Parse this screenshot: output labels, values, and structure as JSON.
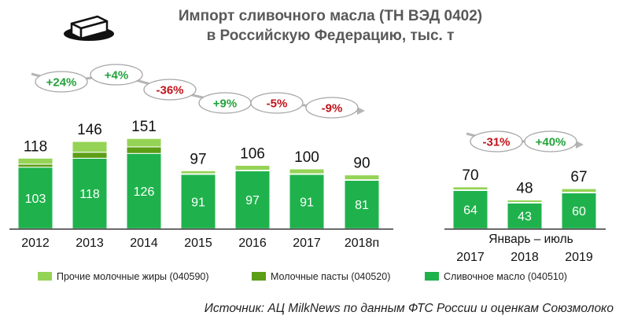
{
  "title": {
    "line1": "Импорт сливочного масла (ТН ВЭД 0402)",
    "line2": "в Российскую Федерацию, тыс. т"
  },
  "legend": {
    "other_fats": "Прочие молочные жиры (040590)",
    "pastes": "Молочные пасты (040520)",
    "butter": "Сливочное масло (040510)"
  },
  "period_label": "Январь – июль",
  "source": "Источник: АЦ MilkNews по данным ФТС России и оценкам Союзмолоко",
  "colors": {
    "butter": "#1fb24c",
    "pastes": "#5c9e16",
    "other_fats": "#95d356",
    "positive": "#22a33a",
    "negative": "#c0141c",
    "axis": "#111111"
  },
  "icon": "butter-dish-icon",
  "chart_data": {
    "type": "bar",
    "stacked": true,
    "ylim": [
      0,
      160
    ],
    "categories": [
      "2012",
      "2013",
      "2014",
      "2015",
      "2016",
      "2017",
      "2018п",
      "2017",
      "2018",
      "2019"
    ],
    "series": [
      {
        "name": "Сливочное масло (040510)",
        "values": [
          103,
          118,
          126,
          91,
          97,
          91,
          81,
          64,
          43,
          60
        ]
      },
      {
        "name": "Молочные пасты (040520)",
        "values": [
          5,
          10,
          11,
          1,
          1,
          1,
          1,
          1,
          1,
          1
        ]
      },
      {
        "name": "Прочие молочные жиры (040590)",
        "values": [
          10,
          18,
          14,
          5,
          8,
          8,
          8,
          5,
          4,
          6
        ]
      }
    ],
    "totals": [
      "118",
      "146",
      "151",
      "97",
      "106",
      "100",
      "90",
      "70",
      "48",
      "67"
    ],
    "butter_labels": [
      "103",
      "118",
      "126",
      "91",
      "97",
      "91",
      "81",
      "64",
      "43",
      "60"
    ],
    "changes": [
      "+24%",
      "+4%",
      "-36%",
      "+9%",
      "-5%",
      "-9%",
      "-31%",
      "+40%"
    ]
  }
}
